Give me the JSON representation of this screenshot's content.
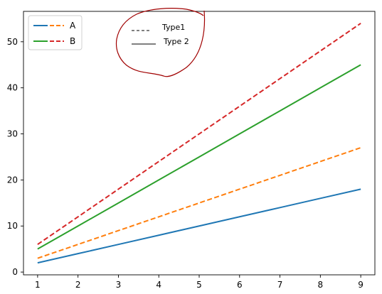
{
  "chart_data": {
    "type": "line",
    "x": [
      1,
      2,
      3,
      4,
      5,
      6,
      7,
      8,
      9
    ],
    "xticks": [
      1,
      2,
      3,
      4,
      5,
      6,
      7,
      8,
      9
    ],
    "yticks": [
      0,
      10,
      20,
      30,
      40,
      50
    ],
    "xlim": [
      0.65,
      9.35
    ],
    "ylim": [
      -0.6,
      56.6
    ],
    "grid": false,
    "legend_position": "top-left",
    "series": [
      {
        "name": "",
        "values": [
          2,
          4,
          6,
          8,
          10,
          12,
          14,
          16,
          18
        ],
        "color": "#1f77b4",
        "style": "solid"
      },
      {
        "name": "A",
        "values": [
          3,
          6,
          9,
          12,
          15,
          18,
          21,
          24,
          27
        ],
        "color": "#ff7f0e",
        "style": "dashed"
      },
      {
        "name": "",
        "values": [
          5,
          10,
          15,
          20,
          25,
          30,
          35,
          40,
          45
        ],
        "color": "#2ca02c",
        "style": "solid"
      },
      {
        "name": "B",
        "values": [
          6,
          12,
          18,
          24,
          30,
          36,
          42,
          48,
          54
        ],
        "color": "#d62728",
        "style": "dashed"
      }
    ],
    "legend": [
      {
        "label": "A",
        "entries": [
          {
            "color": "#1f77b4",
            "style": "solid"
          },
          {
            "color": "#ff7f0e",
            "style": "dashed"
          }
        ]
      },
      {
        "label": "B",
        "entries": [
          {
            "color": "#2ca02c",
            "style": "solid"
          },
          {
            "color": "#d62728",
            "style": "dashed"
          }
        ]
      }
    ],
    "annotation": {
      "entries": [
        {
          "label": "Type1",
          "style": "dashed"
        },
        {
          "label": "Type 2",
          "style": "solid"
        }
      ],
      "circle_color": "#a00000"
    }
  }
}
